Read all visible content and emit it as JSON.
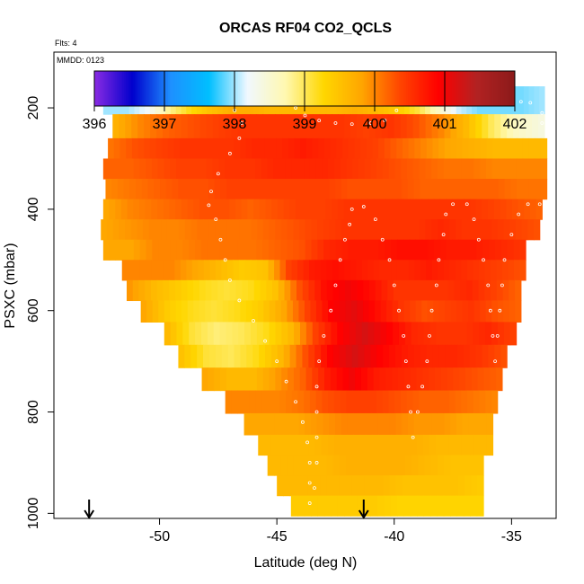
{
  "chart_data": {
    "type": "heatmap",
    "title": "ORCAS RF04 CO2_QCLS",
    "subtitle_flts": "Flts: 4",
    "subtitle_mmdd": "MMDD: 0123",
    "xlabel": "Latitude (deg N)",
    "ylabel": "PSXC (mbar)",
    "xlim": [
      -54.5,
      -33.1
    ],
    "ylim": [
      1010,
      90
    ],
    "x_ticks": [
      -50,
      -45,
      -40,
      -35
    ],
    "x_tick_labels": [
      "-50",
      "-45",
      "-40",
      "-35"
    ],
    "y_ticks": [
      200,
      400,
      600,
      800,
      1000
    ],
    "y_tick_labels": [
      "200",
      "400",
      "600",
      "800",
      "1000"
    ],
    "colorbar": {
      "range": [
        396,
        402
      ],
      "ticks": [
        396,
        397,
        398,
        399,
        400,
        401,
        402
      ],
      "tick_labels": [
        "396",
        "397",
        "398",
        "399",
        "400",
        "401",
        "402"
      ],
      "colors": [
        "#8a2be2",
        "#0000cd",
        "#1e90ff",
        "#00bfff",
        "#f0f8ff",
        "#fff8b0",
        "#ffd700",
        "#ffa500",
        "#ff4500",
        "#ff0000",
        "#b22222",
        "#8b1a1a"
      ]
    },
    "arrows_lat": [
      -53.0,
      -41.3
    ],
    "rows": [
      {
        "p": 185,
        "x0": -52.4,
        "x1": -33.6,
        "v": [
          398.0,
          398.0,
          398.2,
          398.8,
          399.2,
          399.5,
          399.7,
          399.7,
          399.6,
          399.6,
          399.6,
          399.6,
          399.7,
          399.6,
          399.4,
          399.1,
          398.6,
          398.1,
          397.9,
          397.9,
          397.9,
          398.0
        ]
      },
      {
        "p": 240,
        "x0": -52.0,
        "x1": -33.6,
        "v": [
          399.7,
          400.0,
          400.2,
          400.3,
          400.4,
          400.5,
          400.5,
          400.5,
          400.5,
          400.5,
          400.4,
          400.5,
          400.3,
          400.0,
          399.6,
          399.0,
          398.6,
          398.4
        ]
      },
      {
        "p": 280,
        "x0": -52.2,
        "x1": -33.5,
        "v": [
          400.1,
          400.3,
          400.4,
          400.5,
          400.5,
          400.5,
          400.6,
          400.6,
          400.7,
          400.6,
          400.5,
          400.4,
          400.2,
          400.0,
          399.8,
          399.7,
          399.6,
          399.6,
          399.6
        ]
      },
      {
        "p": 320,
        "x0": -52.4,
        "x1": -33.5,
        "v": [
          400.2,
          400.2,
          400.3,
          400.4,
          400.4,
          400.5,
          400.5,
          400.6,
          400.6,
          400.6,
          400.5,
          400.4,
          400.3,
          400.2,
          400.1,
          400.1,
          400.0,
          400.0,
          400.0
        ]
      },
      {
        "p": 360,
        "x0": -52.3,
        "x1": -33.5,
        "v": [
          400.0,
          400.1,
          400.2,
          400.3,
          400.3,
          400.4,
          400.4,
          400.4,
          400.4,
          400.4,
          400.3,
          400.3,
          400.3,
          400.2,
          400.2,
          400.2,
          400.2,
          400.1,
          400.1
        ]
      },
      {
        "p": 400,
        "x0": -52.4,
        "x1": -33.7,
        "v": [
          399.8,
          400.0,
          400.1,
          400.2,
          400.3,
          400.3,
          400.2,
          400.3,
          400.4,
          400.4,
          400.5,
          400.5,
          400.5,
          400.5,
          400.5,
          400.5,
          400.4,
          400.3,
          400.2
        ]
      },
      {
        "p": 440,
        "x0": -52.5,
        "x1": -33.8,
        "v": [
          399.8,
          399.9,
          400.0,
          400.0,
          400.1,
          400.1,
          400.1,
          400.2,
          400.3,
          400.4,
          400.5,
          400.5,
          400.5,
          400.5,
          400.6,
          400.5,
          400.5,
          400.4,
          400.3
        ]
      },
      {
        "p": 480,
        "x0": -52.4,
        "x1": -34.4,
        "v": [
          399.8,
          399.8,
          400.0,
          400.0,
          400.1,
          400.1,
          400.1,
          400.2,
          400.3,
          400.6,
          400.7,
          400.7,
          400.8,
          400.8,
          400.7,
          400.7,
          400.6,
          400.5
        ]
      },
      {
        "p": 520,
        "x0": -51.6,
        "x1": -34.4,
        "v": [
          400.0,
          400.0,
          400.0,
          399.8,
          399.6,
          399.4,
          399.5,
          400.4,
          400.7,
          400.8,
          400.7,
          400.6,
          400.6,
          400.7,
          400.6,
          400.5,
          400.4,
          400.3
        ]
      },
      {
        "p": 560,
        "x0": -51.4,
        "x1": -34.6,
        "v": [
          399.9,
          399.6,
          399.4,
          399.2,
          399.1,
          399.2,
          399.5,
          400.3,
          400.8,
          401.0,
          400.8,
          400.5,
          400.5,
          400.5,
          400.6,
          400.4,
          400.2
        ]
      },
      {
        "p": 600,
        "x0": -50.8,
        "x1": -34.6,
        "v": [
          399.8,
          399.4,
          399.2,
          399.1,
          399.2,
          399.4,
          399.8,
          400.4,
          400.9,
          401.1,
          400.8,
          400.5,
          400.3,
          400.4,
          400.5,
          400.3,
          400.2
        ]
      },
      {
        "p": 645,
        "x0": -49.8,
        "x1": -34.8,
        "v": [
          399.6,
          399.1,
          398.9,
          399.0,
          399.2,
          399.6,
          400.4,
          400.9,
          401.2,
          400.9,
          400.6,
          400.5,
          400.5,
          400.6,
          400.4
        ]
      },
      {
        "p": 690,
        "x0": -49.2,
        "x1": -35.2,
        "v": [
          399.5,
          399.1,
          399.0,
          399.2,
          399.6,
          400.3,
          400.9,
          401.2,
          400.9,
          400.7,
          400.6,
          400.6,
          400.5,
          400.3
        ]
      },
      {
        "p": 735,
        "x0": -48.2,
        "x1": -35.4,
        "v": [
          399.8,
          399.6,
          399.6,
          399.9,
          400.2,
          400.7,
          401.0,
          400.7,
          400.6,
          400.5,
          400.4,
          400.3,
          400.2
        ]
      },
      {
        "p": 780,
        "x0": -47.2,
        "x1": -35.6,
        "v": [
          400.0,
          400.0,
          400.0,
          400.1,
          400.3,
          400.4,
          400.4,
          400.3,
          400.2,
          400.2,
          400.1,
          400.0
        ]
      },
      {
        "p": 825,
        "x0": -46.4,
        "x1": -35.8,
        "v": [
          399.8,
          399.8,
          399.8,
          399.9,
          400.0,
          400.0,
          400.0,
          399.9,
          399.9,
          399.8,
          399.8
        ]
      },
      {
        "p": 865,
        "x0": -45.8,
        "x1": -35.8,
        "v": [
          399.6,
          399.6,
          399.6,
          399.7,
          399.7,
          399.7,
          399.7,
          399.6,
          399.6,
          399.6
        ]
      },
      {
        "p": 905,
        "x0": -45.4,
        "x1": -36.2,
        "v": [
          399.6,
          399.6,
          399.6,
          399.7,
          399.7,
          399.7,
          399.6,
          399.5,
          399.5
        ]
      },
      {
        "p": 945,
        "x0": -45.0,
        "x1": -36.2,
        "v": [
          399.6,
          399.6,
          399.6,
          399.6,
          399.6,
          399.5,
          399.5,
          399.5,
          399.4
        ]
      },
      {
        "p": 985,
        "x0": -44.4,
        "x1": -36.2,
        "v": [
          399.4,
          399.4,
          399.4,
          399.4,
          399.3,
          399.3,
          399.3,
          399.3
        ]
      }
    ],
    "flight_track": [
      [
        -52.3,
        188
      ],
      [
        -51.9,
        178
      ],
      [
        -50.7,
        178
      ],
      [
        -49.8,
        178
      ],
      [
        -48.9,
        178
      ],
      [
        -48.3,
        178
      ],
      [
        -47.3,
        190
      ],
      [
        -46.8,
        205
      ],
      [
        -46.5,
        230
      ],
      [
        -46.6,
        260
      ],
      [
        -47.0,
        290
      ],
      [
        -47.5,
        330
      ],
      [
        -47.8,
        365
      ],
      [
        -47.9,
        392
      ],
      [
        -47.6,
        420
      ],
      [
        -47.4,
        460
      ],
      [
        -47.2,
        500
      ],
      [
        -47.0,
        540
      ],
      [
        -46.6,
        580
      ],
      [
        -46.0,
        620
      ],
      [
        -45.5,
        660
      ],
      [
        -45.0,
        700
      ],
      [
        -44.6,
        740
      ],
      [
        -44.2,
        780
      ],
      [
        -43.9,
        820
      ],
      [
        -43.7,
        860
      ],
      [
        -43.6,
        900
      ],
      [
        -43.6,
        940
      ],
      [
        -43.6,
        980
      ],
      [
        -43.4,
        950
      ],
      [
        -43.3,
        900
      ],
      [
        -43.3,
        850
      ],
      [
        -43.3,
        800
      ],
      [
        -43.3,
        750
      ],
      [
        -43.2,
        700
      ],
      [
        -43.0,
        650
      ],
      [
        -42.7,
        600
      ],
      [
        -42.5,
        550
      ],
      [
        -42.3,
        500
      ],
      [
        -42.1,
        460
      ],
      [
        -41.9,
        430
      ],
      [
        -41.8,
        400
      ],
      [
        -41.3,
        395
      ],
      [
        -40.8,
        420
      ],
      [
        -40.5,
        460
      ],
      [
        -40.2,
        500
      ],
      [
        -40.0,
        550
      ],
      [
        -39.8,
        600
      ],
      [
        -39.6,
        650
      ],
      [
        -39.5,
        700
      ],
      [
        -39.4,
        750
      ],
      [
        -39.3,
        800
      ],
      [
        -39.2,
        850
      ],
      [
        -39.0,
        800
      ],
      [
        -38.8,
        750
      ],
      [
        -38.6,
        700
      ],
      [
        -38.5,
        650
      ],
      [
        -38.4,
        600
      ],
      [
        -38.2,
        550
      ],
      [
        -38.1,
        500
      ],
      [
        -37.9,
        450
      ],
      [
        -37.8,
        410
      ],
      [
        -37.5,
        390
      ],
      [
        -36.9,
        390
      ],
      [
        -36.6,
        420
      ],
      [
        -36.4,
        460
      ],
      [
        -36.2,
        500
      ],
      [
        -36.0,
        550
      ],
      [
        -35.9,
        600
      ],
      [
        -35.8,
        650
      ],
      [
        -35.7,
        700
      ],
      [
        -35.6,
        650
      ],
      [
        -35.5,
        600
      ],
      [
        -35.4,
        550
      ],
      [
        -35.3,
        500
      ],
      [
        -35.0,
        450
      ],
      [
        -34.7,
        410
      ],
      [
        -34.3,
        390
      ],
      [
        -33.8,
        390
      ],
      [
        -44.8,
        178
      ],
      [
        -44.2,
        200
      ],
      [
        -43.8,
        215
      ],
      [
        -43.2,
        225
      ],
      [
        -42.5,
        230
      ],
      [
        -41.8,
        232
      ],
      [
        -41.0,
        230
      ],
      [
        -40.4,
        225
      ],
      [
        -39.9,
        205
      ],
      [
        -39.6,
        185
      ],
      [
        -39.0,
        178
      ],
      [
        -38.5,
        178
      ],
      [
        -38.0,
        178
      ],
      [
        -37.5,
        180
      ],
      [
        -37.0,
        185
      ],
      [
        -36.6,
        188
      ],
      [
        -36.2,
        190
      ],
      [
        -35.4,
        190
      ],
      [
        -34.6,
        188
      ],
      [
        -34.2,
        190
      ],
      [
        -33.7,
        210
      ],
      [
        -33.7,
        230
      ]
    ]
  }
}
